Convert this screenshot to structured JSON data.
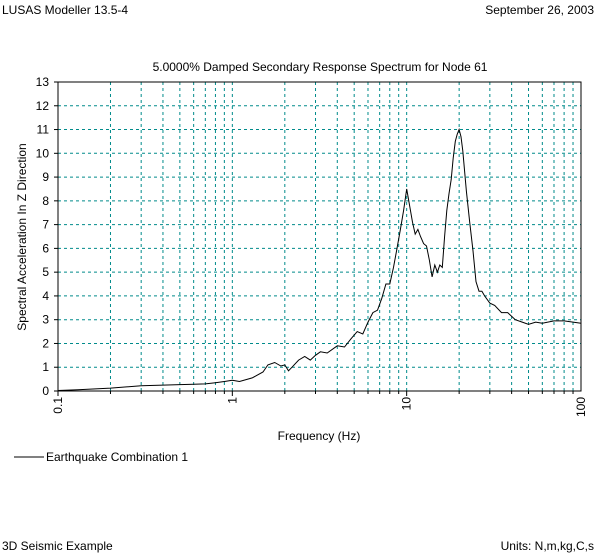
{
  "header": {
    "app": "LUSAS Modeller 13.5-4",
    "date": "September 26, 2003"
  },
  "footer": {
    "left": "3D Seismic Example",
    "right": "Units: N,m,kg,C,s"
  },
  "colors": {
    "grid": "#008b8b",
    "line": "#000000"
  },
  "chart_data": {
    "type": "line",
    "title": "5.0000% Damped Secondary Response Spectrum for Node 61",
    "xlabel": "Frequency (Hz)",
    "ylabel": "Spectral Acceleration In Z Direction",
    "xscale": "log",
    "xlim": [
      0.1,
      100
    ],
    "ylim": [
      0,
      13
    ],
    "xticks": [
      "0.1",
      "1",
      "10",
      "100"
    ],
    "yticks": [
      "0",
      "1",
      "2",
      "3",
      "4",
      "5",
      "6",
      "7",
      "8",
      "9",
      "10",
      "11",
      "12",
      "13"
    ],
    "grid": true,
    "legend": "bottom-left",
    "series": [
      {
        "name": "Earthquake Combination 1",
        "x": [
          0.1,
          0.13,
          0.2,
          0.3,
          0.4,
          0.5,
          0.6,
          0.7,
          0.8,
          0.9,
          1.0,
          1.1,
          1.3,
          1.5,
          1.6,
          1.75,
          1.9,
          2.0,
          2.1,
          2.2,
          2.4,
          2.6,
          2.8,
          3.0,
          3.2,
          3.5,
          4.0,
          4.4,
          4.8,
          5.2,
          5.6,
          6.0,
          6.4,
          6.8,
          7.2,
          7.6,
          8.0,
          8.4,
          8.8,
          9.2,
          9.6,
          10.0,
          10.4,
          10.8,
          11.2,
          11.6,
          12.0,
          12.5,
          13.0,
          13.5,
          14.0,
          14.5,
          15.0,
          15.5,
          16.0,
          16.5,
          17.0,
          17.5,
          18.0,
          18.5,
          19.0,
          19.5,
          20.0,
          20.5,
          21.0,
          22.0,
          23.0,
          24.0,
          25.0,
          26.0,
          27.0,
          28.0,
          30.0,
          32.0,
          35.0,
          38.0,
          42.0,
          46.0,
          50.0,
          55.0,
          60.0,
          70.0,
          80.0,
          90.0,
          100.0
        ],
        "values": [
          0.02,
          0.05,
          0.12,
          0.22,
          0.25,
          0.27,
          0.28,
          0.3,
          0.35,
          0.4,
          0.45,
          0.4,
          0.55,
          0.8,
          1.1,
          1.2,
          1.05,
          1.1,
          0.85,
          1.0,
          1.3,
          1.45,
          1.3,
          1.5,
          1.65,
          1.6,
          1.9,
          1.85,
          2.2,
          2.5,
          2.4,
          2.9,
          3.3,
          3.4,
          3.9,
          4.5,
          4.5,
          5.2,
          6.0,
          6.8,
          7.6,
          8.5,
          7.8,
          7.1,
          6.6,
          6.8,
          6.5,
          6.2,
          6.1,
          5.5,
          4.8,
          5.3,
          5.0,
          5.3,
          5.2,
          6.5,
          7.6,
          8.3,
          8.9,
          9.8,
          10.5,
          10.8,
          11.0,
          10.7,
          10.1,
          8.4,
          7.1,
          5.9,
          4.6,
          4.2,
          4.2,
          4.0,
          3.7,
          3.6,
          3.3,
          3.3,
          3.0,
          2.9,
          2.8,
          2.9,
          2.85,
          2.95,
          2.95,
          2.9,
          2.85
        ]
      }
    ]
  }
}
